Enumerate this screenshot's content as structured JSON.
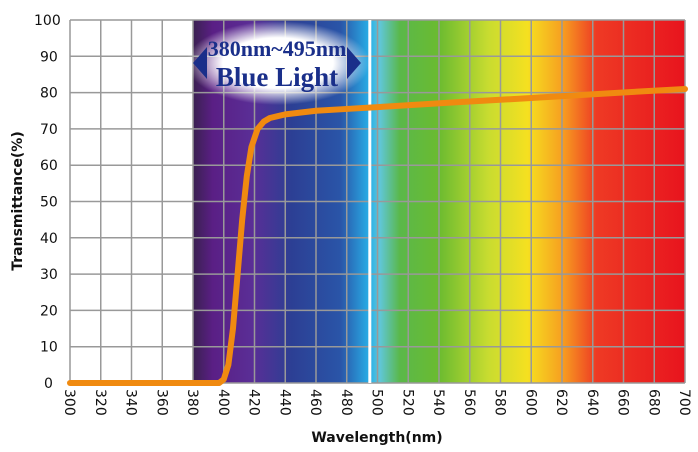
{
  "chart_data": {
    "type": "line",
    "xlabel": "Wavelength(nm)",
    "ylabel": "Transmittance(%)",
    "xlim": [
      300,
      700
    ],
    "ylim": [
      0,
      100
    ],
    "xticks": [
      300,
      320,
      340,
      360,
      380,
      400,
      420,
      440,
      460,
      480,
      500,
      520,
      540,
      560,
      580,
      600,
      620,
      640,
      660,
      680,
      700
    ],
    "yticks": [
      0,
      10,
      20,
      30,
      40,
      50,
      60,
      70,
      80,
      90,
      100
    ],
    "grid": true,
    "background": "visible spectrum gradient from 380 to 700 nm",
    "annotation": {
      "range_text": "380nm~495nm",
      "label": "Blue Light",
      "range": [
        380,
        495
      ]
    },
    "series": [
      {
        "color": "#f08a10",
        "x": [
          300,
          390,
          397,
          400,
          403,
          406,
          409,
          412,
          415,
          418,
          422,
          426,
          430,
          435,
          440,
          460,
          480,
          500,
          550,
          600,
          650,
          700
        ],
        "y": [
          0,
          0,
          0,
          1,
          5,
          15,
          30,
          45,
          57,
          65,
          70,
          72,
          73,
          73.5,
          74,
          75,
          75.5,
          76,
          77.3,
          78.5,
          79.8,
          81
        ]
      }
    ]
  }
}
